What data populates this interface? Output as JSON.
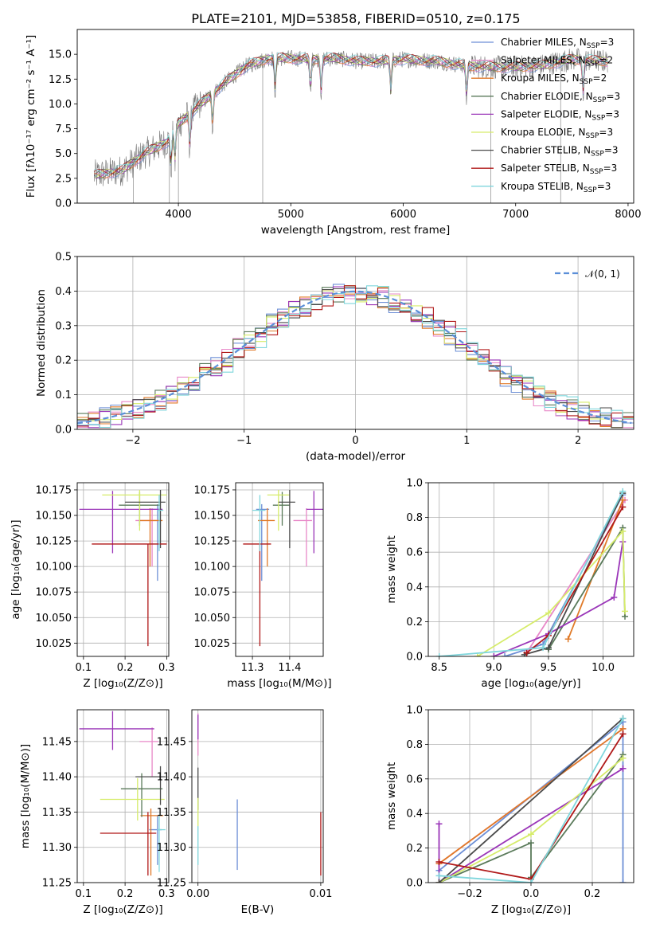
{
  "title": "PLATE=2101, MJD=53858, FIBERID=0510, z=0.175",
  "series": [
    {
      "name": "Chabrier MILES",
      "nssp": "3",
      "color": "#6d8fd6"
    },
    {
      "name": "Salpeter MILES",
      "nssp": "2",
      "color": "#e888c8"
    },
    {
      "name": "Kroupa MILES",
      "nssp": "2",
      "color": "#e07a28"
    },
    {
      "name": "Chabrier ELODIE",
      "nssp": "3",
      "color": "#5a7a5a"
    },
    {
      "name": "Salpeter ELODIE",
      "nssp": "3",
      "color": "#9a35b8"
    },
    {
      "name": "Kroupa ELODIE",
      "nssp": "3",
      "color": "#d6ec6a"
    },
    {
      "name": "Chabrier STELIB",
      "nssp": "3",
      "color": "#4a4a4a"
    },
    {
      "name": "Salpeter STELIB",
      "nssp": "3",
      "color": "#b01818"
    },
    {
      "name": "Kroupa STELIB",
      "nssp": "3",
      "color": "#7fd6dc"
    }
  ],
  "chart_data": [
    {
      "id": "spectrum",
      "type": "line",
      "xlabel": "wavelength [Angstrom, rest frame]",
      "ylabel": "Flux [fλ10⁻¹⁷ erg cm⁻² s⁻¹ A⁻¹]",
      "xlim": [
        3100,
        8050
      ],
      "ylim": [
        0,
        17.5
      ],
      "xticks": [
        "4000",
        "5000",
        "6000",
        "7000",
        "8000"
      ],
      "yticks": [
        "0.0",
        "2.5",
        "5.0",
        "7.5",
        "10.0",
        "12.5",
        "15.0"
      ],
      "continuum": [
        [
          3250,
          2.8
        ],
        [
          3500,
          3.3
        ],
        [
          3700,
          5.0
        ],
        [
          3900,
          6.2
        ],
        [
          4000,
          8.0
        ],
        [
          4200,
          10.0
        ],
        [
          4400,
          12.0
        ],
        [
          4600,
          13.8
        ],
        [
          4800,
          14.6
        ],
        [
          5000,
          14.6
        ],
        [
          5200,
          14.5
        ],
        [
          5400,
          14.6
        ],
        [
          5600,
          14.3
        ],
        [
          5800,
          14.3
        ],
        [
          6000,
          14.5
        ],
        [
          6300,
          14.3
        ],
        [
          6600,
          13.8
        ],
        [
          6900,
          13.7
        ],
        [
          7200,
          13.8
        ],
        [
          7500,
          14.5
        ],
        [
          7800,
          14.3
        ]
      ],
      "absorption_features": [
        3934,
        3969,
        4102,
        4304,
        4861,
        5175,
        5270,
        5890,
        6563,
        7600
      ],
      "drop_lines": [
        3600,
        3920,
        4000,
        4750,
        6780,
        7400
      ],
      "legend": "upper right"
    },
    {
      "id": "residuals",
      "type": "histogram",
      "xlabel": "(data-model)/error",
      "ylabel": "Normed distribution",
      "xlim": [
        -2.5,
        2.5
      ],
      "ylim": [
        0,
        0.5
      ],
      "xticks": [
        "−2",
        "−1",
        "0",
        "1",
        "2"
      ],
      "yticks": [
        "0.0",
        "0.1",
        "0.2",
        "0.3",
        "0.4",
        "0.5"
      ],
      "bin_width": 0.1,
      "reference_curve": "𝒩(0, 1)",
      "reference_color": "#5b8fd8",
      "legend": "upper right"
    },
    {
      "id": "age-vs-Z",
      "type": "errorbar",
      "xlabel": "Z [log₁₀(Z/Z⊙)]",
      "ylabel": "age  [log₁₀(age/yr)]",
      "xlim": [
        0.085,
        0.305
      ],
      "ylim": [
        10.012,
        10.182
      ],
      "xticks": [
        "0.1",
        "0.2",
        "0.3"
      ],
      "yticks": [
        "10.025",
        "10.050",
        "10.075",
        "10.100",
        "10.125",
        "10.150",
        "10.175"
      ],
      "points": [
        {
          "x": 0.278,
          "y": 10.156,
          "xerr": [
            0.02,
            0.01
          ],
          "yerr": [
            0.07,
            0.005
          ],
          "c": "#6d8fd6"
        },
        {
          "x": 0.265,
          "y": 10.145,
          "xerr": [
            0.04,
            0.02
          ],
          "yerr": [
            0.045,
            0.012
          ],
          "c": "#e888c8"
        },
        {
          "x": 0.26,
          "y": 10.145,
          "xerr": [
            0.025,
            0.03
          ],
          "yerr": [
            0.045,
            0.012
          ],
          "c": "#e07a28"
        },
        {
          "x": 0.235,
          "y": 10.16,
          "xerr": [
            0.05,
            0.05
          ],
          "yerr": [
            0.02,
            0.013
          ],
          "c": "#5a7a5a"
        },
        {
          "x": 0.17,
          "y": 10.156,
          "xerr": [
            0.08,
            0.12
          ],
          "yerr": [
            0.043,
            0.018
          ],
          "c": "#9a35b8"
        },
        {
          "x": 0.235,
          "y": 10.17,
          "xerr": [
            0.09,
            0.065
          ],
          "yerr": [
            0.035,
            0.005
          ],
          "c": "#d6ec6a"
        },
        {
          "x": 0.285,
          "y": 10.163,
          "xerr": [
            0.085,
            0.012
          ],
          "yerr": [
            0.045,
            0.012
          ],
          "c": "#4a4a4a"
        },
        {
          "x": 0.255,
          "y": 10.122,
          "xerr": [
            0.135,
            0.045
          ],
          "yerr": [
            0.1,
            0.0
          ],
          "c": "#b01818"
        },
        {
          "x": 0.282,
          "y": 10.155,
          "xerr": [
            0.005,
            0.01
          ],
          "yerr": [
            0.04,
            0.015
          ],
          "c": "#7fd6dc"
        }
      ]
    },
    {
      "id": "age-vs-mass",
      "type": "errorbar",
      "xlabel": "mass [log₁₀(M/M⊙)]",
      "ylabel": "",
      "xlim": [
        11.255,
        11.49
      ],
      "ylim": [
        10.012,
        10.182
      ],
      "xticks": [
        "11.3",
        "11.4"
      ],
      "yticks": [
        "10.025",
        "10.050",
        "10.075",
        "10.100",
        "10.125",
        "10.150",
        "10.175"
      ],
      "points": [
        {
          "x": 11.325,
          "y": 10.156,
          "xerr": [
            0.015,
            0.02
          ],
          "yerr": [
            0.07,
            0.005
          ],
          "c": "#6d8fd6"
        },
        {
          "x": 11.445,
          "y": 10.145,
          "xerr": [
            0.035,
            0.015
          ],
          "yerr": [
            0.045,
            0.012
          ],
          "c": "#e888c8"
        },
        {
          "x": 11.34,
          "y": 10.145,
          "xerr": [
            0.025,
            0.02
          ],
          "yerr": [
            0.045,
            0.012
          ],
          "c": "#e07a28"
        },
        {
          "x": 11.38,
          "y": 10.16,
          "xerr": [
            0.025,
            0.02
          ],
          "yerr": [
            0.02,
            0.013
          ],
          "c": "#5a7a5a"
        },
        {
          "x": 11.465,
          "y": 10.156,
          "xerr": [
            0.02,
            0.03
          ],
          "yerr": [
            0.043,
            0.018
          ],
          "c": "#9a35b8"
        },
        {
          "x": 11.37,
          "y": 10.17,
          "xerr": [
            0.03,
            0.03
          ],
          "yerr": [
            0.035,
            0.005
          ],
          "c": "#d6ec6a"
        },
        {
          "x": 11.4,
          "y": 10.163,
          "xerr": [
            0.03,
            0.015
          ],
          "yerr": [
            0.045,
            0.012
          ],
          "c": "#4a4a4a"
        },
        {
          "x": 11.32,
          "y": 10.122,
          "xerr": [
            0.045,
            0.03
          ],
          "yerr": [
            0.1,
            0.0
          ],
          "c": "#b01818"
        },
        {
          "x": 11.32,
          "y": 10.155,
          "xerr": [
            0.02,
            0.015
          ],
          "yerr": [
            0.04,
            0.015
          ],
          "c": "#7fd6dc"
        }
      ]
    },
    {
      "id": "mass-weight-vs-age",
      "type": "line",
      "xlabel": "age  [log₁₀(age/yr)]",
      "ylabel": "mass weight",
      "xlim": [
        8.4,
        10.28
      ],
      "ylim": [
        0,
        1
      ],
      "xticks": [
        "8.5",
        "9.0",
        "9.5",
        "10.0"
      ],
      "yticks": [
        "0.0",
        "0.2",
        "0.4",
        "0.6",
        "0.8",
        "1.0"
      ],
      "lines": [
        {
          "c": "#6d8fd6",
          "pts": [
            [
              9.1,
              0.0
            ],
            [
              9.45,
              0.07
            ],
            [
              10.18,
              0.93
            ]
          ]
        },
        {
          "c": "#e888c8",
          "pts": [
            [
              9.3,
              0.02
            ],
            [
              10.2,
              0.9
            ]
          ]
        },
        {
          "c": "#e07a28",
          "pts": [
            [
              9.68,
              0.1
            ],
            [
              10.18,
              0.9
            ]
          ]
        },
        {
          "c": "#5a7a5a",
          "pts": [
            [
              9.5,
              0.04
            ],
            [
              10.18,
              0.74
            ],
            [
              10.2,
              0.23
            ]
          ]
        },
        {
          "c": "#9a35b8",
          "pts": [
            [
              9.0,
              0.0
            ],
            [
              9.5,
              0.13
            ],
            [
              10.1,
              0.34
            ],
            [
              10.18,
              0.66
            ]
          ]
        },
        {
          "c": "#d6ec6a",
          "pts": [
            [
              8.85,
              0.0
            ],
            [
              9.5,
              0.25
            ],
            [
              10.18,
              0.72
            ],
            [
              10.2,
              0.26
            ]
          ]
        },
        {
          "c": "#4a4a4a",
          "pts": [
            [
              9.28,
              0.01
            ],
            [
              9.5,
              0.05
            ],
            [
              10.18,
              0.94
            ]
          ]
        },
        {
          "c": "#b01818",
          "pts": [
            [
              9.3,
              0.02
            ],
            [
              9.5,
              0.12
            ],
            [
              10.18,
              0.86
            ]
          ]
        },
        {
          "c": "#7fd6dc",
          "pts": [
            [
              8.5,
              0.0
            ],
            [
              9.45,
              0.05
            ],
            [
              10.18,
              0.95
            ]
          ]
        }
      ]
    },
    {
      "id": "mass-vs-Z",
      "type": "errorbar",
      "xlabel": "Z [log₁₀(Z/Z⊙)]",
      "ylabel": "mass [log₁₀(M/M⊙)]",
      "xlim": [
        0.085,
        0.305
      ],
      "ylim": [
        11.25,
        11.495
      ],
      "xticks": [
        "0.1",
        "0.2",
        "0.3"
      ],
      "yticks": [
        "11.25",
        "11.30",
        "11.35",
        "11.40",
        "11.45"
      ],
      "points": [
        {
          "x": 0.278,
          "y": 11.325,
          "xerr": [
            0.02,
            0.01
          ],
          "yerr": [
            0.05,
            0.02
          ],
          "c": "#6d8fd6"
        },
        {
          "x": 0.265,
          "y": 11.45,
          "xerr": [
            0.03,
            0.015
          ],
          "yerr": [
            0.05,
            0.02
          ],
          "c": "#e888c8"
        },
        {
          "x": 0.262,
          "y": 11.345,
          "xerr": [
            0.025,
            0.03
          ],
          "yerr": [
            0.085,
            0.01
          ],
          "c": "#e07a28"
        },
        {
          "x": 0.24,
          "y": 11.383,
          "xerr": [
            0.05,
            0.05
          ],
          "yerr": [
            0.04,
            0.022
          ],
          "c": "#5a7a5a"
        },
        {
          "x": 0.17,
          "y": 11.468,
          "xerr": [
            0.08,
            0.1
          ],
          "yerr": [
            0.03,
            0.025
          ],
          "c": "#9a35b8"
        },
        {
          "x": 0.23,
          "y": 11.368,
          "xerr": [
            0.09,
            0.065
          ],
          "yerr": [
            0.03,
            0.03
          ],
          "c": "#d6ec6a"
        },
        {
          "x": 0.285,
          "y": 11.4,
          "xerr": [
            0.06,
            0.012
          ],
          "yerr": [
            0.04,
            0.015
          ],
          "c": "#4a4a4a"
        },
        {
          "x": 0.255,
          "y": 11.32,
          "xerr": [
            0.115,
            0.02
          ],
          "yerr": [
            0.06,
            0.03
          ],
          "c": "#b01818"
        },
        {
          "x": 0.282,
          "y": 11.325,
          "xerr": [
            0.005,
            0.015
          ],
          "yerr": [
            0.06,
            0.02
          ],
          "c": "#7fd6dc"
        }
      ]
    },
    {
      "id": "mass-vs-ebv",
      "type": "errorbar",
      "xlabel": "E(B-V)",
      "ylabel": "",
      "xlim": [
        -0.0005,
        0.0102
      ],
      "ylim": [
        11.25,
        11.495
      ],
      "xticks": [
        "0.00",
        "0.01"
      ],
      "yticks": [
        "11.25",
        "11.30",
        "11.35",
        "11.40",
        "11.45"
      ],
      "points": [
        {
          "x": 0.0,
          "y": 11.45,
          "xerr": [
            0,
            0
          ],
          "yerr": [
            0.02,
            0.04
          ],
          "c": "#e888c8"
        },
        {
          "x": 0.0,
          "y": 11.468,
          "xerr": [
            0,
            0
          ],
          "yerr": [
            0.015,
            0.02
          ],
          "c": "#9a35b8"
        },
        {
          "x": 0.0,
          "y": 11.383,
          "xerr": [
            0,
            0
          ],
          "yerr": [
            0.03,
            0.03
          ],
          "c": "#4a4a4a"
        },
        {
          "x": 0.0,
          "y": 11.35,
          "xerr": [
            0,
            0
          ],
          "yerr": [
            0.02,
            0.02
          ],
          "c": "#d6ec6a"
        },
        {
          "x": 0.0,
          "y": 11.3,
          "xerr": [
            0,
            0
          ],
          "yerr": [
            0.025,
            0.03
          ],
          "c": "#7fd6dc"
        },
        {
          "x": 0.0032,
          "y": 11.318,
          "xerr": [
            0,
            0
          ],
          "yerr": [
            0.05,
            0.05
          ],
          "c": "#6d8fd6"
        },
        {
          "x": 0.01,
          "y": 11.305,
          "xerr": [
            0,
            0
          ],
          "yerr": [
            0.045,
            0.045
          ],
          "c": "#b01818"
        }
      ]
    },
    {
      "id": "mass-weight-vs-Z",
      "type": "line",
      "xlabel": "Z [log₁₀(Z/Z⊙)]",
      "ylabel": "mass weight",
      "xlim": [
        -0.335,
        0.335
      ],
      "ylim": [
        0,
        1
      ],
      "xticks": [
        "−0.2",
        "0.0",
        "0.2"
      ],
      "yticks": [
        "0.0",
        "0.2",
        "0.4",
        "0.6",
        "0.8",
        "1.0"
      ],
      "lines": [
        {
          "c": "#6d8fd6",
          "pts": [
            [
              -0.3,
              0.07
            ],
            [
              0.3,
              0.93
            ],
            [
              0.3,
              0.0
            ]
          ]
        },
        {
          "c": "#e888c8",
          "pts": [
            [
              -0.3,
              0.11
            ],
            [
              0.3,
              0.89
            ]
          ]
        },
        {
          "c": "#e07a28",
          "pts": [
            [
              -0.3,
              0.11
            ],
            [
              0.3,
              0.89
            ]
          ]
        },
        {
          "c": "#5a7a5a",
          "pts": [
            [
              -0.3,
              0.0
            ],
            [
              0.0,
              0.23
            ],
            [
              0.0,
              0.03
            ],
            [
              0.3,
              0.74
            ]
          ]
        },
        {
          "c": "#9a35b8",
          "pts": [
            [
              -0.3,
              0.34
            ],
            [
              -0.3,
              0.0
            ],
            [
              0.3,
              0.66
            ]
          ]
        },
        {
          "c": "#d6ec6a",
          "pts": [
            [
              -0.3,
              0.0
            ],
            [
              0.0,
              0.28
            ],
            [
              0.3,
              0.72
            ]
          ]
        },
        {
          "c": "#4a4a4a",
          "pts": [
            [
              -0.3,
              0.0
            ],
            [
              0.3,
              0.95
            ]
          ]
        },
        {
          "c": "#b01818",
          "pts": [
            [
              -0.3,
              0.12
            ],
            [
              0.0,
              0.02
            ],
            [
              0.3,
              0.86
            ]
          ]
        },
        {
          "c": "#7fd6dc",
          "pts": [
            [
              -0.3,
              0.04
            ],
            [
              0.0,
              0.0
            ],
            [
              0.3,
              0.95
            ]
          ]
        }
      ]
    }
  ]
}
